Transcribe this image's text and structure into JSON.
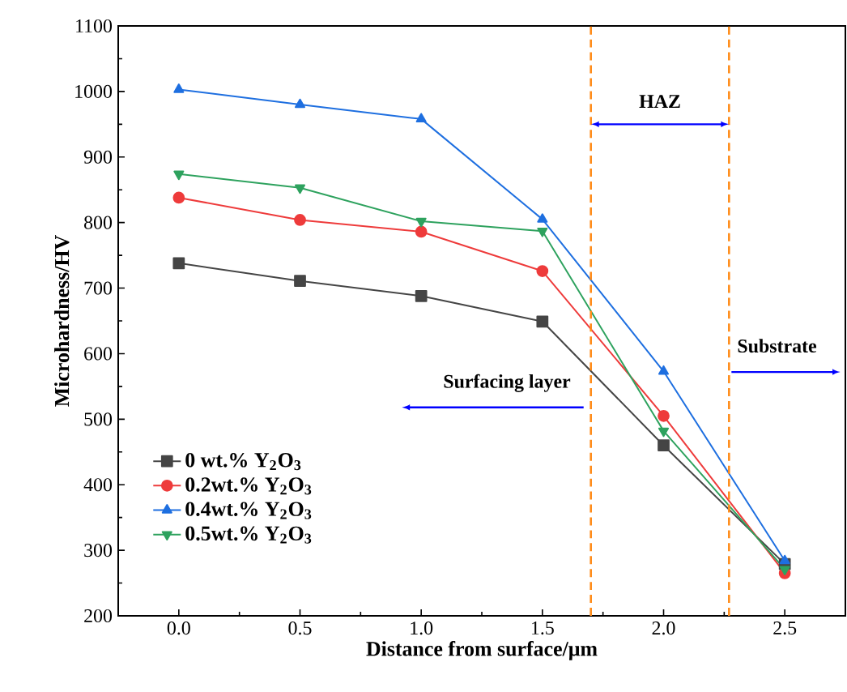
{
  "chart_data": {
    "type": "line",
    "xlabel": "Distance from surface/μm",
    "ylabel": "Microhardness/HV",
    "x": [
      0.0,
      0.5,
      1.0,
      1.5,
      2.0,
      2.5
    ],
    "series": [
      {
        "name": "0 wt.% Y$_{2}$O$_{3}$",
        "color": "#454545",
        "marker": "square",
        "values": [
          738,
          711,
          688,
          649,
          460,
          279
        ]
      },
      {
        "name": "0.2wt.% Y$_{2}$O$_{3}$",
        "color": "#ee3b3b",
        "marker": "circle",
        "values": [
          838,
          804,
          786,
          726,
          505,
          265
        ]
      },
      {
        "name": "0.4wt.% Y$_{2}$O$_{3}$",
        "color": "#1e6fe0",
        "marker": "triangle",
        "values": [
          1003,
          980,
          958,
          805,
          573,
          284
        ]
      },
      {
        "name": "0.5wt.% Y$_{2}$O$_{3}$",
        "color": "#2ea25e",
        "marker": "triangle-down",
        "values": [
          874,
          853,
          802,
          787,
          482,
          271
        ]
      }
    ],
    "xlim": [
      -0.25,
      2.75
    ],
    "ylim": [
      200,
      1100
    ],
    "xticks": [
      {
        "value": 0,
        "label": "0.0"
      },
      {
        "value": 0.5,
        "label": "0.5"
      },
      {
        "value": 1,
        "label": "1.0"
      },
      {
        "value": 1.5,
        "label": "1.5"
      },
      {
        "value": 2,
        "label": "2.0"
      },
      {
        "value": 2.5,
        "label": "2.5"
      }
    ],
    "yticks": [
      200,
      300,
      400,
      500,
      600,
      700,
      800,
      900,
      1000,
      1100
    ],
    "ref_lines": [
      {
        "axis": "x",
        "value": 1.7,
        "color": "#ff8c1a",
        "line_style": "dashed"
      },
      {
        "axis": "x",
        "value": 2.27,
        "color": "#ff8c1a",
        "line_style": "dashed"
      }
    ],
    "annotations": [
      "HAZ",
      "Surfacing layer",
      "Substrate"
    ],
    "legend": "bottom left",
    "grid": false,
    "line_style": "solid"
  }
}
